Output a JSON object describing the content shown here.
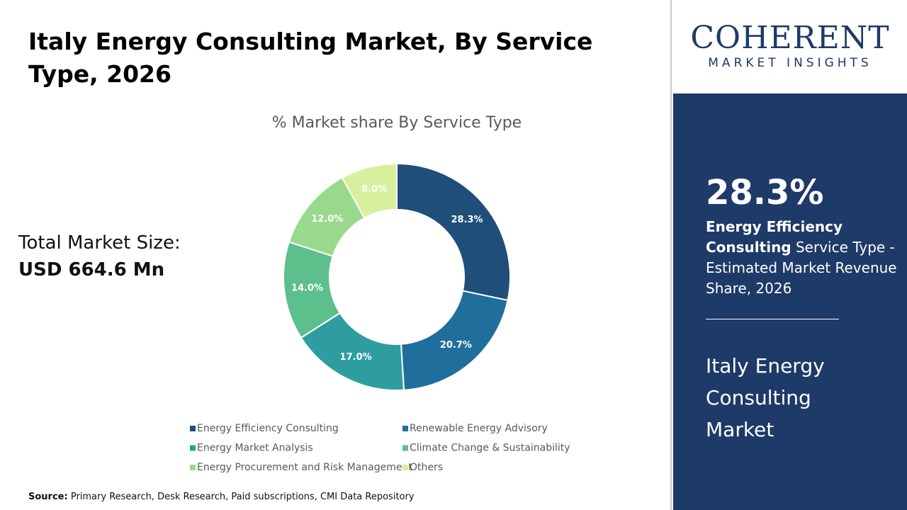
{
  "header": {
    "title": "Italy Energy Consulting Market, By Service Type, 2026"
  },
  "logo": {
    "word": "COHERENT",
    "tagline": "MARKET INSIGHTS"
  },
  "market_size": {
    "label": "Total Market Size:",
    "value": "USD 664.6 Mn"
  },
  "highlight": {
    "share": "28.3%",
    "segment": "Energy Efficiency Consulting",
    "text": "Service Type - Estimated Market Revenue Share, 2026",
    "market": "Italy Energy Consulting Market"
  },
  "source": {
    "label": "Source:",
    "text": "Primary Research, Desk Research, Paid subscriptions, CMI Data Repository"
  },
  "chart_data": {
    "type": "donut",
    "title": "% Market share By Service Type",
    "categories": [
      "Energy Efficiency Consulting",
      "Renewable Energy Advisory",
      "Energy Market Analysis",
      "Climate Change & Sustainability",
      "Energy Procurement and Risk Management",
      "Others"
    ],
    "values": [
      28.3,
      20.7,
      17.0,
      14.0,
      12.0,
      8.0
    ],
    "value_labels": [
      "28.3%",
      "20.7%",
      "17.0%",
      "14.0%",
      "12.0%",
      "8.0%"
    ],
    "colors": [
      "#1f4e79",
      "#1f6e9c",
      "#2e9d9f",
      "#5cbf8c",
      "#99d98d",
      "#d8f09e"
    ]
  }
}
